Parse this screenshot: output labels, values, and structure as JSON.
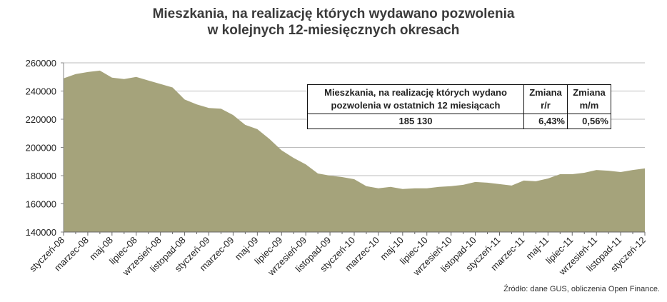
{
  "chart_data": {
    "type": "area",
    "title_lines": [
      "Mieszkania, na realizację których wydawano pozwolenia",
      "w kolejnych 12-miesięcznych okresach"
    ],
    "y_ticks": [
      "260000",
      "240000",
      "220000",
      "200000",
      "180000",
      "160000",
      "140000"
    ],
    "ylim": [
      140000,
      260000
    ],
    "x_tick_labels": [
      "styczeń-08",
      "marzec-08",
      "maj-08",
      "lipiec-08",
      "wrzesień-08",
      "listopad-08",
      "styczeń-09",
      "marzec-09",
      "maj-09",
      "lipiec-09",
      "wrzesień-09",
      "listopad-09",
      "styczeń-10",
      "marzec-10",
      "maj-10",
      "lipiec-10",
      "wrzesień-10",
      "listopad-10",
      "styczeń-11",
      "marzec-11",
      "maj-11",
      "lipiec-11",
      "wrzesień-11",
      "listopad-11",
      "styczeń-12"
    ],
    "series": [
      {
        "color": "#a5a37b",
        "values": [
          249000,
          252000,
          253500,
          254500,
          249500,
          248500,
          250000,
          247500,
          245000,
          242500,
          234000,
          230500,
          228000,
          227500,
          223000,
          216000,
          213000,
          206000,
          198000,
          192500,
          188000,
          181500,
          180000,
          179000,
          177500,
          172500,
          171000,
          172000,
          170500,
          171000,
          171000,
          172000,
          172500,
          173500,
          175500,
          175000,
          174000,
          173000,
          176500,
          176000,
          178000,
          181000,
          181000,
          182000,
          184000,
          183500,
          182500,
          184000,
          185130
        ]
      }
    ],
    "grid": "horizontal"
  },
  "info_table": {
    "header_desc": "Mieszkania, na realizację których wydano pozwolenia w ostatnich 12 miesiącach",
    "header_rr": "Zmiana r/r",
    "header_mm": "Zmiana m/m",
    "value_main": "185 130",
    "value_rr": "6,43%",
    "value_mm": "0,56%"
  },
  "source": "Źródło: dane GUS, obliczenia Open Finance."
}
